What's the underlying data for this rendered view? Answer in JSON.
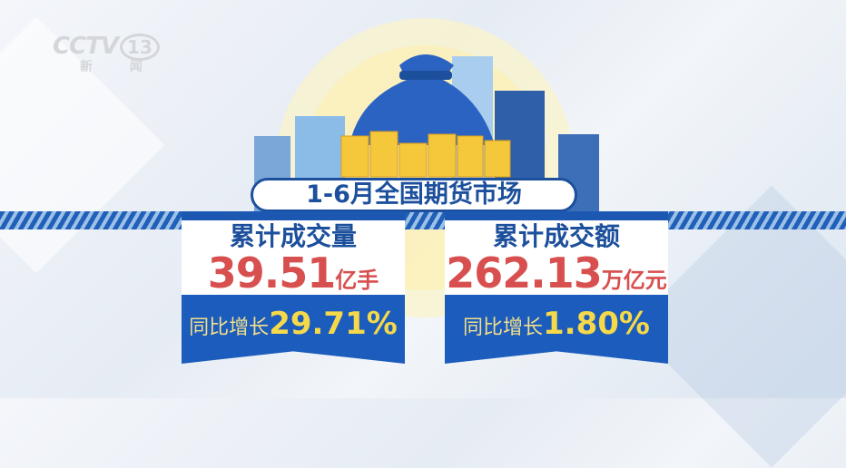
{
  "logo": {
    "brand": "CCTV",
    "channel": "13",
    "name": "新 闻"
  },
  "title": "1-6月全国期货市场",
  "cards": [
    {
      "label": "累计成交量",
      "value": "39.51",
      "unit": "亿手",
      "growth_prefix": "同比增长",
      "growth": "29.71%"
    },
    {
      "label": "累计成交额",
      "value": "262.13",
      "unit": "万亿元",
      "growth_prefix": "同比增长",
      "growth": "1.80%"
    }
  ],
  "colors": {
    "navy": "#1c4f9c",
    "blue": "#1c5cbc",
    "red": "#d84f4f",
    "yellow": "#f5d94a"
  }
}
